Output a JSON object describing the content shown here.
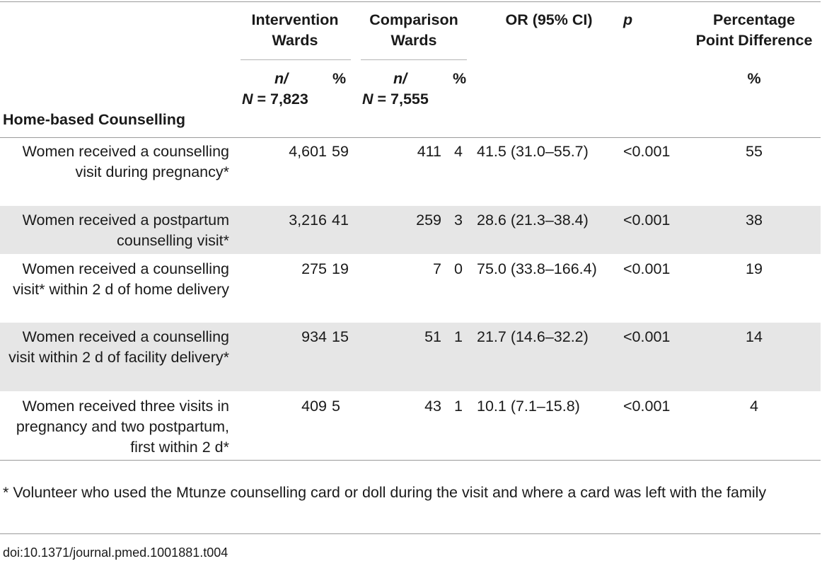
{
  "table": {
    "header": {
      "row_header": "Home-based Counselling",
      "intervention": {
        "line1": "Intervention",
        "line2": "Wards",
        "n_label": "n/",
        "n_value": "N = 7,823",
        "pct": "%"
      },
      "comparison": {
        "line1": "Comparison",
        "line2": "Wards",
        "n_label": "n/",
        "n_value": "N = 7,555",
        "pct": "%"
      },
      "or": "OR (95% CI)",
      "p": "p",
      "ppd": {
        "line1": "Percentage",
        "line2": "Point Difference",
        "unit": "%"
      }
    },
    "rows": [
      {
        "label": "Women received a counselling visit during pregnancy*",
        "int_n": "4,601",
        "int_pct": "59",
        "cmp_n": "411",
        "cmp_pct": "4",
        "or": "41.5 (31.0–55.7)",
        "p": "<0.001",
        "ppd": "55"
      },
      {
        "label": "Women received a postpartum counselling visit*",
        "int_n": "3,216",
        "int_pct": "41",
        "cmp_n": "259",
        "cmp_pct": "3",
        "or": "28.6 (21.3–38.4)",
        "p": "<0.001",
        "ppd": "38"
      },
      {
        "label": "Women received a counselling visit* within 2 d of home delivery",
        "int_n": "275",
        "int_pct": "19",
        "cmp_n": "7",
        "cmp_pct": "0",
        "or": "75.0 (33.8–166.4)",
        "p": "<0.001",
        "ppd": "19"
      },
      {
        "label": "Women received a counselling visit within 2 d of facility delivery*",
        "int_n": "934",
        "int_pct": "15",
        "cmp_n": "51",
        "cmp_pct": "1",
        "or": "21.7 (14.6–32.2)",
        "p": "<0.001",
        "ppd": "14"
      },
      {
        "label": "Women received three visits in pregnancy and two postpartum, first within 2 d*",
        "int_n": "409",
        "int_pct": "5",
        "cmp_n": "43",
        "cmp_pct": "1",
        "or": "10.1 (7.1–15.8)",
        "p": "<0.001",
        "ppd": "4"
      }
    ]
  },
  "footnote": "* Volunteer who used the Mtunze counselling card or doll during the visit and where a card was left with the family",
  "doi": "doi:10.1371/journal.pmed.1001881.t004"
}
